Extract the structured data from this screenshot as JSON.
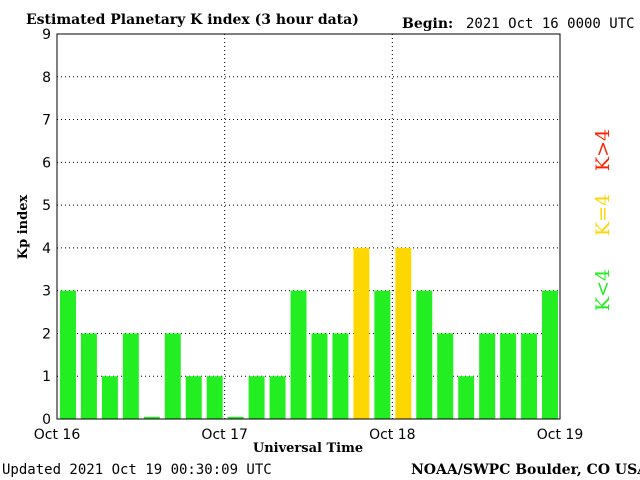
{
  "header": {
    "title": "Estimated Planetary K index (3 hour data)",
    "begin_label": "Begin:",
    "begin_value": "2021 Oct 16 0000 UTC"
  },
  "footer": {
    "updated": "Updated 2021 Oct 19 00:30:09 UTC",
    "credit": "NOAA/SWPC Boulder, CO USA"
  },
  "legend": [
    {
      "label": "K<4",
      "color": "#22ee22"
    },
    {
      "label": "K=4",
      "color": "#ffd700"
    },
    {
      "label": "K>4",
      "color": "#ff2200"
    }
  ],
  "colors": {
    "low": "#22ee22",
    "mid": "#ffd700",
    "high": "#ff2200",
    "grid": "#000000"
  },
  "chart_data": {
    "type": "bar",
    "title": "Estimated Planetary K index (3 hour data)",
    "xlabel": "Universal Time",
    "ylabel": "Kp index",
    "ylim": [
      0,
      9
    ],
    "yticks": [
      "0",
      "1",
      "2",
      "3",
      "4",
      "5",
      "6",
      "7",
      "8",
      "9"
    ],
    "xticks": [
      "Oct 16",
      "Oct 17",
      "Oct 18",
      "Oct 19"
    ],
    "grid": true,
    "bar_interval_hours": 3,
    "values": [
      3,
      2,
      1,
      2,
      0.05,
      2,
      1,
      1,
      0.05,
      1,
      1,
      3,
      2,
      2,
      4,
      3,
      4,
      3,
      2,
      1,
      2,
      2,
      2,
      3
    ]
  }
}
